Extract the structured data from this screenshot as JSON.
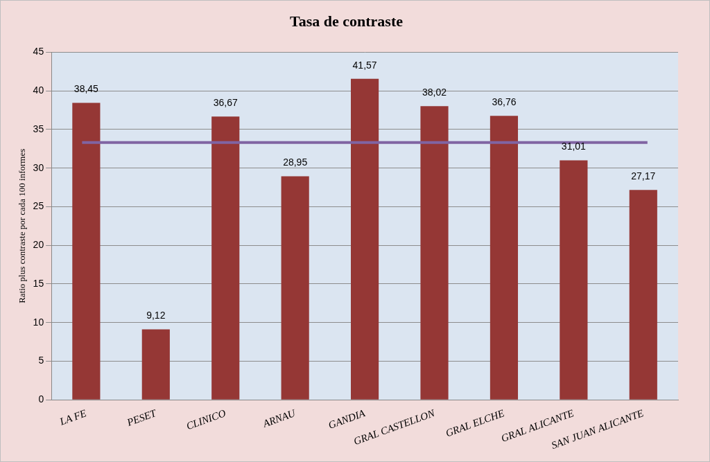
{
  "chart_data": {
    "type": "bar",
    "title": "Tasa de contraste",
    "y_label": "Ratio plus contraste por cada 100 informes",
    "categories": [
      "LA FE",
      "PESET",
      "CLINICO",
      "ARNAU",
      "GANDIA",
      "GRAL CASTELLON",
      "GRAL ELCHE",
      "GRAL ALICANTE",
      "SAN JUAN ALICANTE"
    ],
    "values": [
      38.45,
      9.12,
      36.67,
      28.95,
      41.57,
      38.02,
      36.76,
      31.01,
      27.17
    ],
    "value_labels": [
      "38,45",
      "9,12",
      "36,67",
      "28,95",
      "41,57",
      "38,02",
      "36,76",
      "31,01",
      "27,17"
    ],
    "color": "#953735",
    "ylim": [
      0,
      45
    ],
    "yticks": [
      0,
      5,
      10,
      15,
      20,
      25,
      30,
      35,
      40,
      45
    ],
    "grid": true,
    "data_labels": true,
    "reference_line": {
      "value": 33.3,
      "color": "#8064a2"
    }
  }
}
